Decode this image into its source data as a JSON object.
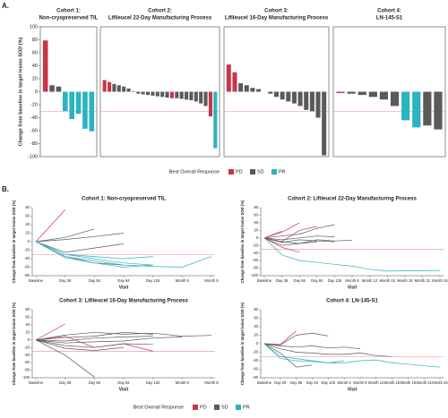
{
  "panel_labels": [
    "A.",
    "B."
  ],
  "legend": {
    "title": "Best Overall Response",
    "items": [
      {
        "name": "PD",
        "color": "#c8354b"
      },
      {
        "name": "SD",
        "color": "#5a5a5a"
      },
      {
        "name": "PR",
        "color": "#2bb3c0"
      }
    ]
  },
  "chart_data": [
    {
      "type": "bar",
      "title": [
        "Cohort 1:",
        "Non-cryopreserved TIL"
      ],
      "ylabel": "Change from baseline in target lesion SOD (%)",
      "ylim": [
        -100,
        100
      ],
      "yticks": [
        -100,
        -80,
        -60,
        -40,
        -20,
        0,
        20,
        40,
        60,
        80,
        100
      ],
      "refline": -30,
      "refline_color": "#e88a94",
      "values": [
        79,
        10,
        8,
        -30,
        -42,
        -34,
        -57,
        -61
      ],
      "colors": [
        "#c8354b",
        "#5a5a5a",
        "#5a5a5a",
        "#2bb3c0",
        "#2bb3c0",
        "#2bb3c0",
        "#2bb3c0",
        "#2bb3c0"
      ]
    },
    {
      "type": "bar",
      "title": [
        "Cohort 2:",
        "Lifileucel 22-Day Manufacturing Process"
      ],
      "ylim": [
        -100,
        100
      ],
      "refline": -30,
      "refline_color": "#e88a94",
      "values": [
        18,
        15,
        12,
        10,
        8,
        5,
        1,
        -3,
        -4,
        -5,
        -6,
        -7,
        -8,
        -9,
        -10,
        -10,
        -11,
        -12,
        -13,
        -15,
        -18,
        -22,
        -38,
        -87
      ],
      "colors": [
        "#c8354b",
        "#c8354b",
        "#5a5a5a",
        "#5a5a5a",
        "#5a5a5a",
        "#5a5a5a",
        "#5a5a5a",
        "#5a5a5a",
        "#5a5a5a",
        "#5a5a5a",
        "#5a5a5a",
        "#5a5a5a",
        "#5a5a5a",
        "#5a5a5a",
        "#c8354b",
        "#5a5a5a",
        "#5a5a5a",
        "#5a5a5a",
        "#5a5a5a",
        "#5a5a5a",
        "#5a5a5a",
        "#5a5a5a",
        "#c8354b",
        "#2bb3c0"
      ]
    },
    {
      "type": "bar",
      "title": [
        "Cohort 3:",
        "Lifileucel 16-Day Manufacturing Process"
      ],
      "ylim": [
        -100,
        100
      ],
      "refline": -30,
      "refline_color": "#e88a94",
      "values": [
        42,
        30,
        13,
        10,
        6,
        4,
        0,
        -3,
        -8,
        -12,
        -15,
        -18,
        -22,
        -28,
        -30,
        -40,
        -98
      ],
      "colors": [
        "#c8354b",
        "#c8354b",
        "#5a5a5a",
        "#5a5a5a",
        "#5a5a5a",
        "#5a5a5a",
        "#5a5a5a",
        "#5a5a5a",
        "#5a5a5a",
        "#5a5a5a",
        "#5a5a5a",
        "#5a5a5a",
        "#5a5a5a",
        "#5a5a5a",
        "#5a5a5a",
        "#5a5a5a",
        "#5a5a5a"
      ]
    },
    {
      "type": "bar",
      "title": [
        "Cohort 4:",
        "LN-145-S1"
      ],
      "ylim": [
        -100,
        100
      ],
      "refline": -30,
      "refline_color": "#e88a94",
      "values": [
        -2,
        -3,
        -5,
        -8,
        -12,
        -22,
        -44,
        -55,
        -52,
        -58
      ],
      "colors": [
        "#c8354b",
        "#5a5a5a",
        "#5a5a5a",
        "#5a5a5a",
        "#5a5a5a",
        "#5a5a5a",
        "#2bb3c0",
        "#2bb3c0",
        "#5a5a5a",
        "#5a5a5a"
      ]
    },
    {
      "type": "line",
      "title": "Cohort 1: Non-cryopreserved TIL",
      "xlabel": "Visit",
      "ylabel": "Change from baseline in target lesion SOD (%)",
      "ylim": [
        -80,
        80
      ],
      "yticks": [
        -80,
        -60,
        -40,
        -20,
        0,
        20,
        40,
        60,
        80
      ],
      "refline": -30,
      "refline_color": "#e88a94",
      "x": [
        "Baseline",
        "Day 28",
        "Day 56",
        "Day 84",
        "Day 126",
        "Month 6",
        "Month 9"
      ],
      "series": [
        {
          "color": "#c8354b",
          "values": [
            0,
            75,
            null,
            null,
            null,
            null,
            null
          ]
        },
        {
          "color": "#5a5a5a",
          "values": [
            0,
            10,
            30,
            null,
            null,
            null,
            null
          ]
        },
        {
          "color": "#5a5a5a",
          "values": [
            0,
            5,
            12,
            20,
            null,
            null,
            null
          ]
        },
        {
          "color": "#5a5a5a",
          "values": [
            0,
            -25,
            -15,
            -5,
            null,
            null,
            null
          ]
        },
        {
          "color": "#5a5a5a",
          "values": [
            0,
            -35,
            -50,
            -55,
            null,
            null,
            null
          ]
        },
        {
          "color": "#2bb3c0",
          "values": [
            0,
            -35,
            -45,
            -55,
            -58,
            -60,
            -35
          ]
        },
        {
          "color": "#2bb3c0",
          "values": [
            0,
            -30,
            -40,
            -50,
            -55,
            null,
            null
          ]
        },
        {
          "color": "#2bb3c0",
          "values": [
            0,
            -38,
            -50,
            -60,
            -55,
            null,
            null
          ]
        },
        {
          "color": "#2bb3c0",
          "values": [
            0,
            -30,
            -35,
            -40,
            -35,
            null,
            null
          ]
        }
      ]
    },
    {
      "type": "line",
      "title": "Cohort 2: Lifileucel 22-Day Manufacturing Process",
      "xlabel": "Visit",
      "ylabel": "Change from baseline in target lesion SOD (%)",
      "ylim": [
        -100,
        80
      ],
      "yticks": [
        -100,
        -80,
        -60,
        -40,
        -20,
        0,
        20,
        40,
        60,
        80
      ],
      "refline": -30,
      "refline_color": "#e88a94",
      "x": [
        "Baseline",
        "Day 28",
        "Day 56",
        "Day 84",
        "Day 126",
        "Month 9",
        "Month 12",
        "Month 15",
        "Month 18",
        "Month 21",
        "Month 24"
      ],
      "series": [
        {
          "color": "#c8354b",
          "values": [
            0,
            18,
            null,
            null,
            null,
            null,
            null,
            null,
            null,
            null,
            null
          ]
        },
        {
          "color": "#c8354b",
          "values": [
            0,
            15,
            40,
            null,
            null,
            null,
            null,
            null,
            null,
            null,
            null
          ]
        },
        {
          "color": "#c8354b",
          "values": [
            0,
            -10,
            20,
            30,
            null,
            null,
            null,
            null,
            null,
            null,
            null
          ]
        },
        {
          "color": "#5a5a5a",
          "values": [
            0,
            5,
            10,
            25,
            35,
            null,
            null,
            null,
            null,
            null,
            null
          ]
        },
        {
          "color": "#5a5a5a",
          "values": [
            0,
            -5,
            0,
            5,
            3,
            null,
            null,
            null,
            null,
            null,
            null
          ]
        },
        {
          "color": "#5a5a5a",
          "values": [
            0,
            -10,
            -15,
            -5,
            -8,
            -6,
            null,
            null,
            null,
            null,
            null
          ]
        },
        {
          "color": "#5a5a5a",
          "values": [
            0,
            -20,
            -15,
            -10,
            null,
            null,
            null,
            null,
            null,
            null,
            null
          ]
        },
        {
          "color": "#c8354b",
          "values": [
            0,
            -25,
            -38,
            null,
            null,
            null,
            null,
            null,
            null,
            null,
            null
          ]
        },
        {
          "color": "#5a5a5a",
          "values": [
            0,
            -12,
            -5,
            -8,
            -10,
            null,
            null,
            null,
            null,
            null,
            null
          ]
        },
        {
          "color": "#2bb3c0",
          "values": [
            0,
            -45,
            -60,
            -65,
            -70,
            -75,
            -83,
            -88,
            -87,
            -87,
            -86
          ]
        }
      ]
    },
    {
      "type": "line",
      "title": "Cohort 3: Lifileucel 16-Day Manufacturing Process",
      "xlabel": "Visit",
      "ylabel": "Change from baseline in target lesion SOD (%)",
      "ylim": [
        -100,
        80
      ],
      "yticks": [
        -100,
        -80,
        -60,
        -40,
        -20,
        0,
        20,
        40,
        60,
        80
      ],
      "refline": -30,
      "refline_color": "#e88a94",
      "x": [
        "Baseline",
        "Day 28",
        "Day 56",
        "Day 84",
        "Day 126",
        "Month 6",
        "Month 9"
      ],
      "series": [
        {
          "color": "#c8354b",
          "values": [
            0,
            42,
            null,
            null,
            null,
            null,
            null
          ]
        },
        {
          "color": "#c8354b",
          "values": [
            0,
            10,
            -20,
            -10,
            -30,
            null,
            null
          ]
        },
        {
          "color": "#5a5a5a",
          "values": [
            0,
            13,
            20,
            15,
            18,
            10,
            12
          ]
        },
        {
          "color": "#5a5a5a",
          "values": [
            0,
            6,
            10,
            20,
            15,
            null,
            null
          ]
        },
        {
          "color": "#5a5a5a",
          "values": [
            0,
            -3,
            5,
            8,
            10,
            null,
            null
          ]
        },
        {
          "color": "#5a5a5a",
          "values": [
            0,
            -8,
            -5,
            -3,
            5,
            8,
            null
          ]
        },
        {
          "color": "#5a5a5a",
          "values": [
            0,
            -15,
            -20,
            -10,
            -12,
            null,
            null
          ]
        },
        {
          "color": "#5a5a5a",
          "values": [
            0,
            -22,
            -28,
            -20,
            null,
            null,
            null
          ]
        },
        {
          "color": "#5a5a5a",
          "values": [
            0,
            -40,
            -98,
            null,
            null,
            null,
            null
          ]
        }
      ]
    },
    {
      "type": "line",
      "title": "Cohort 4: LN-145-S1",
      "xlabel": "Visit",
      "ylabel": "Change from baseline in target lesion SOD (%)",
      "ylim": [
        -80,
        80
      ],
      "yticks": [
        -80,
        -60,
        -40,
        -20,
        0,
        20,
        40,
        60,
        80
      ],
      "refline": -30,
      "refline_color": "#e88a94",
      "x": [
        "Baseline",
        "Day 28",
        "Day 56",
        "Day 84",
        "Day 126",
        "Month 6",
        "Month 9",
        "Month 12",
        "Month 15",
        "Month 18",
        "Month 21",
        "Month 24"
      ],
      "series": [
        {
          "color": "#c8354b",
          "values": [
            0,
            -2,
            30,
            null,
            null,
            null,
            null,
            null,
            null,
            null,
            null,
            null
          ]
        },
        {
          "color": "#5a5a5a",
          "values": [
            0,
            -3,
            20,
            25,
            18,
            null,
            null,
            null,
            null,
            null,
            null,
            null
          ]
        },
        {
          "color": "#5a5a5a",
          "values": [
            0,
            -5,
            -8,
            -5,
            -10,
            -8,
            -12,
            null,
            null,
            null,
            null,
            null
          ]
        },
        {
          "color": "#5a5a5a",
          "values": [
            0,
            -12,
            -20,
            -22,
            -25,
            -25,
            -22,
            -28,
            -30,
            null,
            null,
            null
          ]
        },
        {
          "color": "#5a5a5a",
          "values": [
            0,
            -22,
            -55,
            -50,
            null,
            null,
            null,
            null,
            null,
            null,
            null,
            null
          ]
        },
        {
          "color": "#2bb3c0",
          "values": [
            0,
            -30,
            -35,
            -40,
            -45,
            -45,
            -40,
            -38,
            -45,
            -48,
            -52,
            -55
          ]
        },
        {
          "color": "#2bb3c0",
          "values": [
            0,
            -35,
            -40,
            -42,
            -45,
            -40,
            null,
            null,
            null,
            null,
            null,
            null
          ]
        }
      ]
    }
  ]
}
